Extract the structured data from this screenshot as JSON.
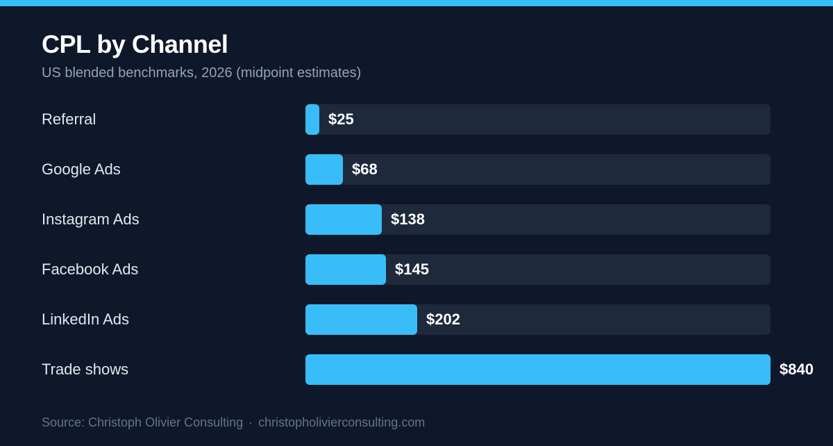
{
  "colors": {
    "background": "#0f172a",
    "accent": "#38bdf8",
    "track": "#1e293b"
  },
  "chart_data": {
    "type": "bar",
    "orientation": "horizontal",
    "title": "CPL by Channel",
    "subtitle": "US blended benchmarks, 2026 (midpoint estimates)",
    "categories": [
      "Referral",
      "Google Ads",
      "Instagram Ads",
      "Facebook Ads",
      "LinkedIn Ads",
      "Trade shows"
    ],
    "values": [
      25,
      68,
      138,
      145,
      202,
      840
    ],
    "value_labels": [
      "$25",
      "$68",
      "$138",
      "$145",
      "$202",
      "$840"
    ],
    "xlim": [
      0,
      840
    ],
    "grid": false,
    "legend": "none"
  },
  "footer": {
    "source": "Source: Christoph Olivier Consulting",
    "separator": "·",
    "url": "christopholivierconsulting.com"
  }
}
